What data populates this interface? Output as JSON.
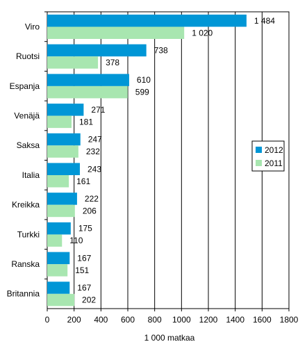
{
  "chart_data": {
    "type": "bar",
    "orientation": "horizontal",
    "categories": [
      "Viro",
      "Ruotsi",
      "Espanja",
      "Venäjä",
      "Saksa",
      "Italia",
      "Kreikka",
      "Turkki",
      "Ranska",
      "Britannia"
    ],
    "series": [
      {
        "name": "2012",
        "color": "#0096d6",
        "values": [
          1484,
          738,
          610,
          271,
          247,
          243,
          222,
          175,
          167,
          167
        ],
        "labels": [
          "1 484",
          "738",
          "610",
          "271",
          "247",
          "243",
          "222",
          "175",
          "167",
          "167"
        ]
      },
      {
        "name": "2011",
        "color": "#a8e6b0",
        "values": [
          1020,
          378,
          599,
          181,
          232,
          161,
          206,
          110,
          151,
          202
        ],
        "labels": [
          "1 020",
          "378",
          "599",
          "181",
          "232",
          "161",
          "206",
          "110",
          "151",
          "202"
        ]
      }
    ],
    "xlabel": "1 000 matkaa",
    "xlim": [
      0,
      1800
    ],
    "xticks": [
      0,
      200,
      400,
      600,
      800,
      1000,
      1200,
      1400,
      1600,
      1800
    ],
    "xtick_labels": [
      "0",
      "200",
      "400",
      "600",
      "800",
      "1000",
      "1200",
      "1400",
      "1600",
      "1800"
    ],
    "grid": "vertical",
    "legend_position": "right"
  }
}
